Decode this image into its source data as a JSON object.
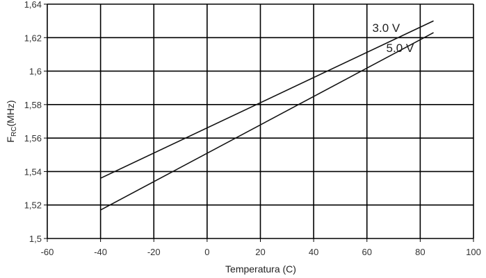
{
  "chart_data": {
    "type": "line",
    "xlabel": "Temperatura (C)",
    "ylabel": "F",
    "ylabel_sub": "RC",
    "ylabel_unit": "(MHz)",
    "xlim": [
      -60,
      100
    ],
    "ylim": [
      1.5,
      1.64
    ],
    "x_ticks": [
      -60,
      -40,
      -20,
      0,
      20,
      40,
      60,
      80,
      100
    ],
    "x_tick_labels": [
      "-60",
      "-40",
      "-20",
      "0",
      "20",
      "40",
      "60",
      "80",
      "100"
    ],
    "y_ticks": [
      1.5,
      1.52,
      1.54,
      1.56,
      1.58,
      1.6,
      1.62,
      1.64
    ],
    "y_tick_labels": [
      "1,5",
      "1,52",
      "1,54",
      "1,56",
      "1,58",
      "1,6",
      "1,62",
      "1,64"
    ],
    "grid": true,
    "series": [
      {
        "name": "3.0 V",
        "x": [
          -40,
          85
        ],
        "y": [
          1.536,
          1.63
        ]
      },
      {
        "name": "5.0 V",
        "x": [
          -40,
          85
        ],
        "y": [
          1.517,
          1.623
        ]
      }
    ]
  }
}
